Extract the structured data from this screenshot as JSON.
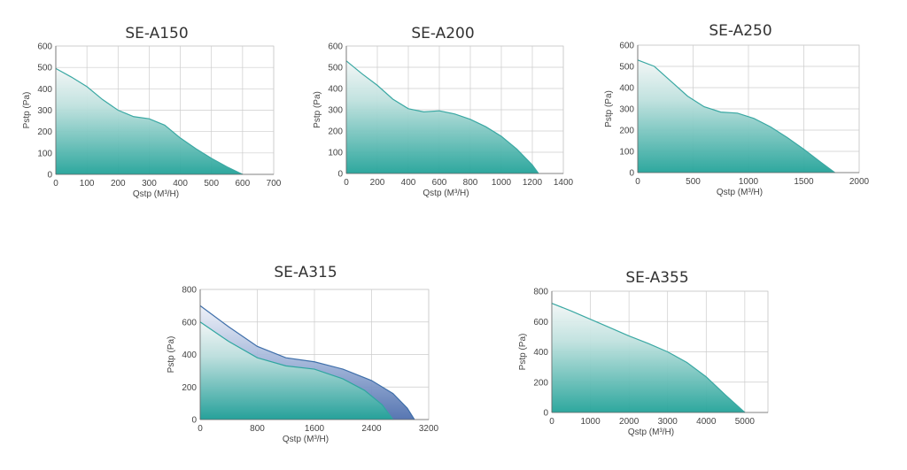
{
  "charts": {
    "c0": {
      "title": "SE-A150"
    },
    "c1": {
      "title": "SE-A200"
    },
    "c2": {
      "title": "SE-A250"
    },
    "c3": {
      "title": "SE-A315"
    },
    "c4": {
      "title": "SE-A355"
    }
  },
  "chart_data": [
    {
      "type": "area",
      "title": "SE-A150",
      "xlabel": "Qstp (M³/H)",
      "ylabel": "Pstp (Pa)",
      "xlim": [
        0,
        700
      ],
      "ylim": [
        0,
        600
      ],
      "xticks": [
        0,
        100,
        200,
        300,
        400,
        500,
        600,
        700
      ],
      "yticks": [
        0,
        100,
        200,
        300,
        400,
        500,
        600
      ],
      "grid": true,
      "series": [
        {
          "color": "#3aa8a3",
          "x": [
            0,
            50,
            100,
            150,
            200,
            250,
            300,
            350,
            400,
            450,
            500,
            550,
            600
          ],
          "y": [
            495,
            455,
            410,
            350,
            300,
            270,
            260,
            230,
            170,
            120,
            75,
            35,
            0
          ]
        }
      ]
    },
    {
      "type": "area",
      "title": "SE-A200",
      "xlabel": "Qstp (M³/H)",
      "ylabel": "Pstp (Pa)",
      "xlim": [
        0,
        1400
      ],
      "ylim": [
        0,
        600
      ],
      "xticks": [
        0,
        200,
        400,
        600,
        800,
        1000,
        1200,
        1400
      ],
      "yticks": [
        0,
        100,
        200,
        300,
        400,
        500,
        600
      ],
      "grid": true,
      "series": [
        {
          "color": "#3aa8a3",
          "x": [
            0,
            100,
            200,
            300,
            400,
            500,
            600,
            700,
            800,
            900,
            1000,
            1100,
            1200,
            1240
          ],
          "y": [
            530,
            470,
            415,
            350,
            305,
            290,
            295,
            280,
            255,
            220,
            175,
            115,
            40,
            0
          ]
        }
      ]
    },
    {
      "type": "area",
      "title": "SE-A250",
      "xlabel": "Qstp (M³/H)",
      "ylabel": "Pstp (Pa)",
      "xlim": [
        0,
        2000
      ],
      "ylim": [
        0,
        600
      ],
      "xticks": [
        0,
        500,
        1000,
        1500,
        2000
      ],
      "yticks": [
        0,
        100,
        200,
        300,
        400,
        500,
        600
      ],
      "grid": true,
      "series": [
        {
          "color": "#3aa8a3",
          "x": [
            0,
            150,
            300,
            450,
            600,
            750,
            900,
            1050,
            1200,
            1350,
            1500,
            1650,
            1780
          ],
          "y": [
            530,
            500,
            430,
            360,
            310,
            285,
            280,
            255,
            215,
            165,
            110,
            50,
            0
          ]
        }
      ]
    },
    {
      "type": "area",
      "title": "SE-A315",
      "xlabel": "Qstp (M³/H)",
      "ylabel": "Pstp (Pa)",
      "xlim": [
        0,
        3200
      ],
      "ylim": [
        0,
        800
      ],
      "xticks": [
        0,
        800,
        1600,
        2400,
        3200
      ],
      "yticks": [
        0,
        200,
        400,
        600,
        800
      ],
      "grid": true,
      "series": [
        {
          "color": "#3f6faa",
          "x": [
            0,
            400,
            800,
            1200,
            1600,
            2000,
            2400,
            2700,
            2900,
            3000
          ],
          "y": [
            700,
            570,
            450,
            380,
            355,
            310,
            240,
            160,
            70,
            0
          ]
        },
        {
          "color": "#2fa6a0",
          "x": [
            0,
            400,
            800,
            1200,
            1600,
            2000,
            2300,
            2550,
            2700
          ],
          "y": [
            600,
            480,
            380,
            330,
            310,
            250,
            180,
            90,
            0
          ]
        }
      ]
    },
    {
      "type": "area",
      "title": "SE-A355",
      "xlabel": "Qstp (M³/H)",
      "ylabel": "Pstp (Pa)",
      "xlim": [
        0,
        5600
      ],
      "ylim": [
        0,
        800
      ],
      "xticks": [
        0,
        1000,
        2000,
        3000,
        4000,
        5000
      ],
      "yticks": [
        0,
        200,
        400,
        600,
        800
      ],
      "grid": true,
      "series": [
        {
          "color": "#3aa8a3",
          "x": [
            0,
            500,
            1000,
            1500,
            2000,
            2500,
            3000,
            3500,
            4000,
            4500,
            5000
          ],
          "y": [
            720,
            670,
            615,
            560,
            505,
            455,
            400,
            330,
            235,
            115,
            0
          ]
        }
      ]
    }
  ]
}
